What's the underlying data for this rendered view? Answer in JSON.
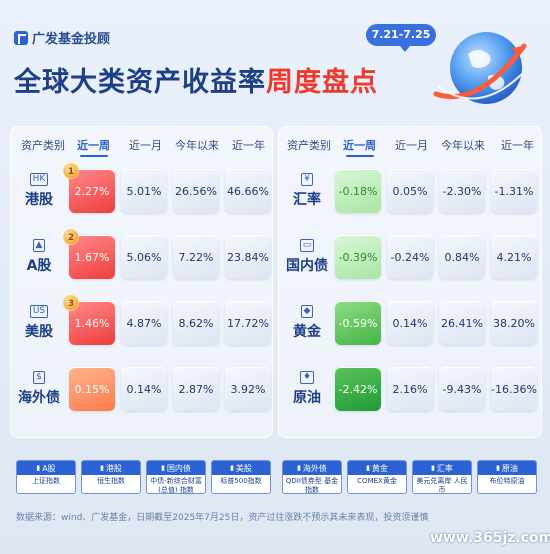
{
  "brand": {
    "name": "广发基金投顾"
  },
  "date_range": "7.21-7.25",
  "title": {
    "part1": "全球大类资产收益率",
    "part2": "周度盘点"
  },
  "headers": {
    "category": "资产类别",
    "week": "近一周",
    "month": "近一月",
    "ytd": "今年以来",
    "year": "近一年"
  },
  "left_rows": [
    {
      "icon": "HK",
      "name": "港股",
      "rank": "1",
      "week": "2.27%",
      "month": "5.01%",
      "ytd": "26.56%",
      "year": "46.66%",
      "color": "red"
    },
    {
      "icon": "▲",
      "name": "A股",
      "rank": "2",
      "week": "1.67%",
      "month": "5.06%",
      "ytd": "7.22%",
      "year": "23.84%",
      "color": "red"
    },
    {
      "icon": "US",
      "name": "美股",
      "rank": "3",
      "week": "1.46%",
      "month": "4.87%",
      "ytd": "8.62%",
      "year": "17.72%",
      "color": "red"
    },
    {
      "icon": "$",
      "name": "海外债",
      "rank": "",
      "week": "0.15%",
      "month": "0.14%",
      "ytd": "2.87%",
      "year": "3.92%",
      "color": "orange"
    }
  ],
  "right_rows": [
    {
      "icon": "¥",
      "name": "汇率",
      "week": "-0.18%",
      "month": "0.05%",
      "ytd": "-2.30%",
      "year": "-1.31%",
      "color": "lightgreen"
    },
    {
      "icon": "▭",
      "name": "国内债",
      "week": "-0.39%",
      "month": "-0.24%",
      "ytd": "0.84%",
      "year": "4.21%",
      "color": "lightgreen"
    },
    {
      "icon": "◆",
      "name": "黄金",
      "week": "-0.59%",
      "month": "0.14%",
      "ytd": "26.41%",
      "year": "38.20%",
      "color": "green"
    },
    {
      "icon": "♦",
      "name": "原油",
      "week": "-2.42%",
      "month": "2.16%",
      "ytd": "-9.43%",
      "year": "-16.36%",
      "color": "darkgreen"
    }
  ],
  "legend": [
    {
      "icon": "▮",
      "label": "A股",
      "desc": "上证指数"
    },
    {
      "icon": "▮",
      "label": "港股",
      "desc": "恒生指数"
    },
    {
      "icon": "▮",
      "label": "国内债",
      "desc": "中债-新综合财富 (总值) 指数"
    },
    {
      "icon": "▮",
      "label": "美股",
      "desc": "标普500指数"
    },
    {
      "icon": "▮",
      "label": "海外债",
      "desc": "QDII债券型 基金指数"
    },
    {
      "icon": "▮",
      "label": "黄金",
      "desc": "COMEX黄金"
    },
    {
      "icon": "▮",
      "label": "汇率",
      "desc": "美元兑离岸 人民币"
    },
    {
      "icon": "▮",
      "label": "原油",
      "desc": "布伦特原油"
    }
  ],
  "footer": "数据来源：wind、广发基金，日期截至2025年7月25日，资产过往涨跌不预示其未来表现，投资须谨慎",
  "watermark": "www.365jz.com"
}
